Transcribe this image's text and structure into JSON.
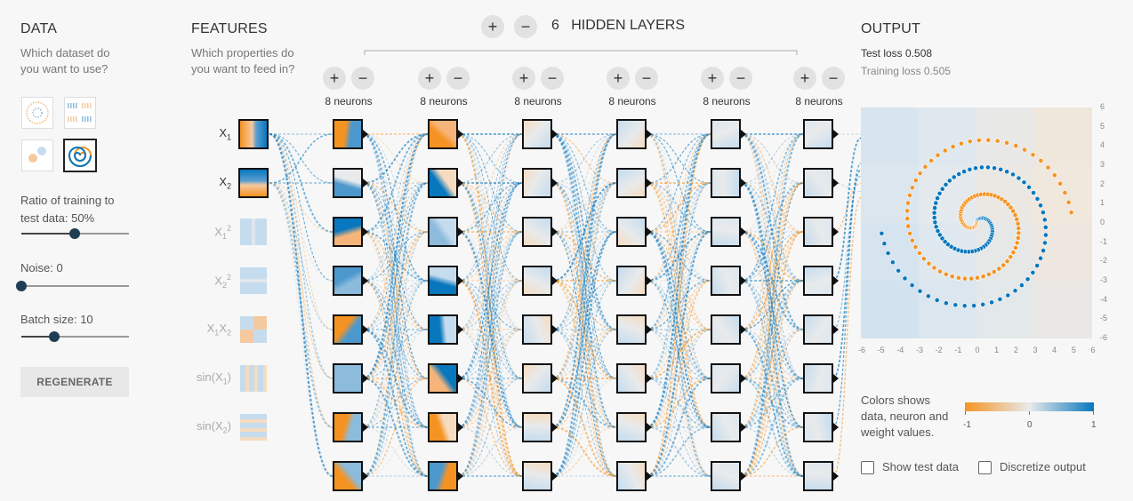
{
  "data_section": {
    "title": "DATA",
    "question_line1": "Which dataset do",
    "question_line2": "you want to use?",
    "ratio_label_line1": "Ratio of training to",
    "ratio_label_line2": "test data:  50%",
    "ratio_value": 0.5,
    "noise_label": "Noise:  0",
    "noise_value": 0,
    "batch_label": "Batch size:  10",
    "batch_value": 0.3,
    "regenerate": "REGENERATE"
  },
  "features_section": {
    "title": "FEATURES",
    "question_line1": "Which properties do",
    "question_line2": "you want to feed in?",
    "features": [
      {
        "name": "X",
        "sub": "1",
        "sup": "",
        "active": true
      },
      {
        "name": "X",
        "sub": "2",
        "sup": "",
        "active": true
      },
      {
        "name": "X",
        "sub": "1",
        "sup": "2",
        "active": false
      },
      {
        "name": "X",
        "sub": "2",
        "sup": "2",
        "active": false
      },
      {
        "name": "X",
        "sub": "1",
        "sup": "",
        "name2": "X",
        "sub2": "2",
        "active": false
      },
      {
        "name": "sin(X",
        "sub": "1",
        "sup": "",
        "close": ")",
        "active": false
      },
      {
        "name": "sin(X",
        "sub": "2",
        "sup": "",
        "close": ")",
        "active": false
      }
    ]
  },
  "hidden_layers": {
    "plus": "+",
    "minus": "−",
    "count": "6",
    "label": "HIDDEN LAYERS",
    "layers": [
      {
        "neurons_label": "8 neurons"
      },
      {
        "neurons_label": "8 neurons"
      },
      {
        "neurons_label": "8 neurons"
      },
      {
        "neurons_label": "8 neurons"
      },
      {
        "neurons_label": "8 neurons"
      },
      {
        "neurons_label": "8 neurons"
      }
    ]
  },
  "output_section": {
    "title": "OUTPUT",
    "test_loss_label": "Test loss ",
    "test_loss_value": "0.508",
    "training_loss_label": "Training loss ",
    "training_loss_value": "0.505",
    "y_ticks": [
      "6",
      "5",
      "4",
      "3",
      "2",
      "1",
      "0",
      "-1",
      "-2",
      "-3",
      "-4",
      "-5",
      "-6"
    ],
    "x_ticks": [
      "-6",
      "-5",
      "-4",
      "-3",
      "-2",
      "-1",
      "0",
      "1",
      "2",
      "3",
      "4",
      "5",
      "6"
    ],
    "legend_line1": "Colors shows",
    "legend_line2": "data, neuron and",
    "legend_line3": "weight values.",
    "legend_min": "-1",
    "legend_mid": "0",
    "legend_max": "1",
    "show_test_data": "Show test data",
    "discretize_output": "Discretize output"
  },
  "colors": {
    "orange": "#f59322",
    "blue": "#0877bd",
    "neutral": "#e8eaeb"
  }
}
